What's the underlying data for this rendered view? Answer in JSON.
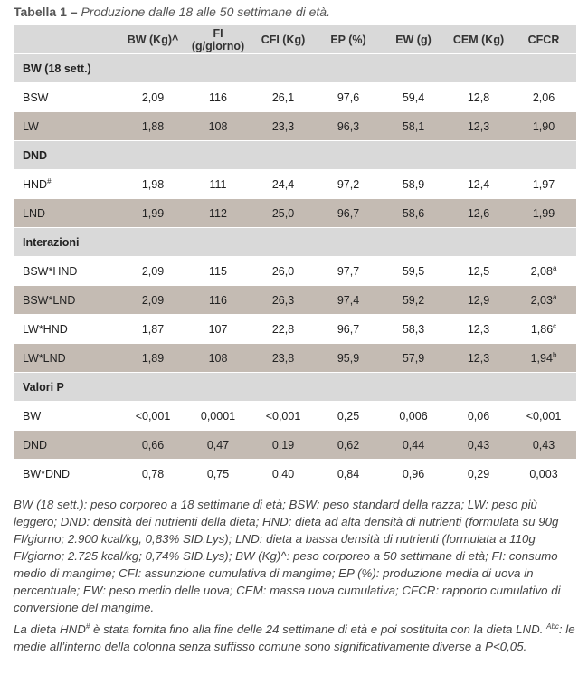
{
  "caption": {
    "label": "Tabella 1 –",
    "title": "Produzione dalle 18 alle 50 settimane di età."
  },
  "columns": [
    "",
    "BW (Kg)^",
    "FI (g/giorno)",
    "CFI (Kg)",
    "EP (%)",
    "EW (g)",
    "CEM (Kg)",
    "CFCR"
  ],
  "rows": [
    {
      "type": "section",
      "label": "BW (18 sett.)"
    },
    {
      "type": "data",
      "shade": "w",
      "cells": [
        "BSW",
        "2,09",
        "116",
        "26,1",
        "97,6",
        "59,4",
        "12,8",
        "2,06"
      ]
    },
    {
      "type": "data",
      "shade": "g",
      "cells": [
        "LW",
        "1,88",
        "108",
        "23,3",
        "96,3",
        "58,1",
        "12,3",
        "1,90"
      ]
    },
    {
      "type": "section",
      "label": "DND"
    },
    {
      "type": "data",
      "shade": "w",
      "label_sup": "#",
      "cells": [
        "HND",
        "1,98",
        "111",
        "24,4",
        "97,2",
        "58,9",
        "12,4",
        "1,97"
      ]
    },
    {
      "type": "data",
      "shade": "g",
      "cells": [
        "LND",
        "1,99",
        "112",
        "25,0",
        "96,7",
        "58,6",
        "12,6",
        "1,99"
      ]
    },
    {
      "type": "section",
      "label": "Interazioni"
    },
    {
      "type": "data",
      "shade": "w",
      "last_sup": "a",
      "cells": [
        "BSW*HND",
        "2,09",
        "115",
        "26,0",
        "97,7",
        "59,5",
        "12,5",
        "2,08"
      ]
    },
    {
      "type": "data",
      "shade": "g",
      "last_sup": "a",
      "cells": [
        "BSW*LND",
        "2,09",
        "116",
        "26,3",
        "97,4",
        "59,2",
        "12,9",
        "2,03"
      ]
    },
    {
      "type": "data",
      "shade": "w",
      "last_sup": "c",
      "cells": [
        "LW*HND",
        "1,87",
        "107",
        "22,8",
        "96,7",
        "58,3",
        "12,3",
        "1,86"
      ]
    },
    {
      "type": "data",
      "shade": "g",
      "last_sup": "b",
      "cells": [
        "LW*LND",
        "1,89",
        "108",
        "23,8",
        "95,9",
        "57,9",
        "12,3",
        "1,94"
      ]
    },
    {
      "type": "section",
      "label": "Valori P"
    },
    {
      "type": "data",
      "shade": "w",
      "cells": [
        "BW",
        "<0,001",
        "0,0001",
        "<0,001",
        "0,25",
        "0,006",
        "0,06",
        "<0,001"
      ]
    },
    {
      "type": "data",
      "shade": "g",
      "cells": [
        "DND",
        "0,66",
        "0,47",
        "0,19",
        "0,62",
        "0,44",
        "0,43",
        "0,43"
      ]
    },
    {
      "type": "data",
      "shade": "w",
      "cells": [
        "BW*DND",
        "0,78",
        "0,75",
        "0,40",
        "0,84",
        "0,96",
        "0,29",
        "0,003"
      ]
    }
  ],
  "notes": {
    "abbreviations": "BW (18 sett.): peso corporeo a 18 settimane di età; BSW: peso standard della razza; LW: peso più leggero; DND: densità dei nutrienti della dieta; HND: dieta ad alta densità di nutrienti (formulata su 90g FI/giorno; 2.900 kcal/kg, 0,83% SID.Lys); LND: dieta a bassa densità di nutrienti (formulata a 110g FI/giorno; 2.725 kcal/kg; 0,74% SID.Lys); BW (Kg)^: peso corporeo a 50 settimane di età; FI: consumo medio di mangime; CFI: assunzione cumulativa di mangime; EP (%): produzione media di uova in percentuale; EW: peso medio delle uova; CEM: massa uova cumulativa; CFCR: rapporto cumulativo di conversione del mangime.",
    "footnote_a": "La dieta HND",
    "footnote_a_sup": "#",
    "footnote_b": " è stata fornita fino alla fine delle 24 settimane di età e poi sostituita con la dieta LND. ",
    "footnote_c_sup": "Abc",
    "footnote_c": ": le medie all’interno della colonna senza suffisso comune sono significativamente diverse a P<0,05."
  }
}
